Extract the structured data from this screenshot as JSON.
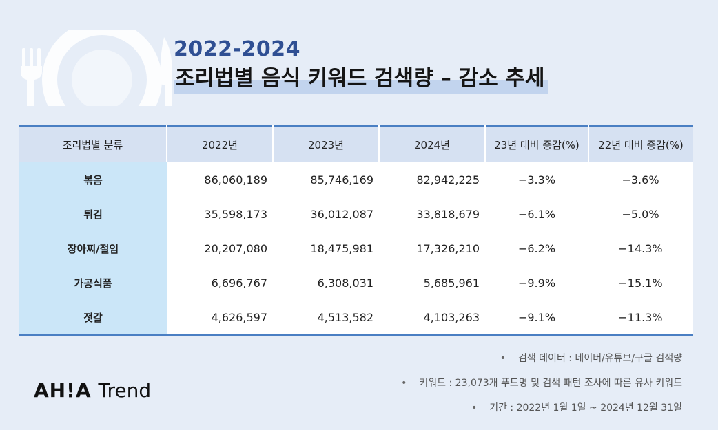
{
  "title": {
    "year": "2022-2024",
    "main": "조리법별 음식 키워드 검색량 – 감소 추세"
  },
  "table": {
    "headers": [
      "조리법별 분류",
      "2022년",
      "2023년",
      "2024년",
      "23년 대비 증감(%)",
      "22년 대비 증감(%)"
    ],
    "rows": [
      {
        "category": "볶음",
        "y2022": "86,060,189",
        "y2023": "85,746,169",
        "y2024": "82,942,225",
        "vs23": "−3.3%",
        "vs22": "−3.6%"
      },
      {
        "category": "튀김",
        "y2022": "35,598,173",
        "y2023": "36,012,087",
        "y2024": "33,818,679",
        "vs23": "−6.1%",
        "vs22": "−5.0%"
      },
      {
        "category": "장아찌/절임",
        "y2022": "20,207,080",
        "y2023": "18,475,981",
        "y2024": "17,326,210",
        "vs23": "−6.2%",
        "vs22": "−14.3%"
      },
      {
        "category": "가공식품",
        "y2022": "6,696,767",
        "y2023": "6,308,031",
        "y2024": "5,685,961",
        "vs23": "−9.9%",
        "vs22": "−15.1%"
      },
      {
        "category": "젓갈",
        "y2022": "4,626,597",
        "y2023": "4,513,582",
        "y2024": "4,103,263",
        "vs23": "−9.1%",
        "vs22": "−11.3%"
      }
    ]
  },
  "notes": [
    "검색 데이터 : 네이버/유튜브/구글 검색량",
    "키워드 :  23,073개 푸드명 및 검색 패턴 조사에 따른 유사 키워드",
    "기간 : 2022년 1월 1일 ~ 2024년 12월 31일"
  ],
  "notes_bullet": "•",
  "logo": {
    "brand": "AH!A",
    "product": "Trend"
  },
  "background_icon": "fork-plate-knife-icon",
  "colors": {
    "background": "#e6edf7",
    "title_year": "#2f4f93",
    "title_highlight": "#c2d4ee",
    "header_bg": "#d6e1f2",
    "category_bg": "#cbe6f8",
    "table_border": "#4a7fc3"
  }
}
